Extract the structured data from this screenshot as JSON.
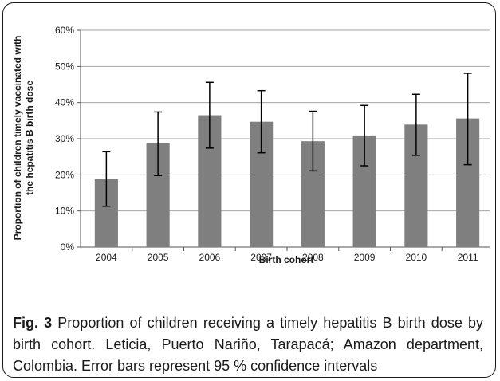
{
  "chart_data": {
    "type": "bar",
    "categories": [
      "2004",
      "2005",
      "2006",
      "2007",
      "2008",
      "2009",
      "2010",
      "2011"
    ],
    "values": [
      18.8,
      28.7,
      36.5,
      34.7,
      29.3,
      30.9,
      33.9,
      35.6
    ],
    "error_low": [
      11.3,
      19.8,
      27.4,
      26.1,
      21.1,
      22.5,
      25.4,
      22.8
    ],
    "error_high": [
      26.4,
      37.4,
      45.6,
      43.3,
      37.6,
      39.2,
      42.3,
      48.1
    ],
    "ylim": [
      0,
      60
    ],
    "yticks": [
      "0%",
      "10%",
      "20%",
      "30%",
      "40%",
      "50%",
      "60%"
    ],
    "ylabel_line1": "Proportion of children timely vaccinated with",
    "ylabel_line2": "the hepatitis B birth dose",
    "xlabel": "Birth cohort",
    "grid": true,
    "bar_color": "#7f7f7f",
    "grid_color": "#a6a6a6"
  },
  "caption": {
    "label": "Fig. 3",
    "text": " Proportion of children receiving a timely hepatitis B birth dose by birth cohort. Leticia, Puerto Nariño, Tarapacá; Amazon department, Colombia. Error bars represent 95 % confidence intervals"
  }
}
